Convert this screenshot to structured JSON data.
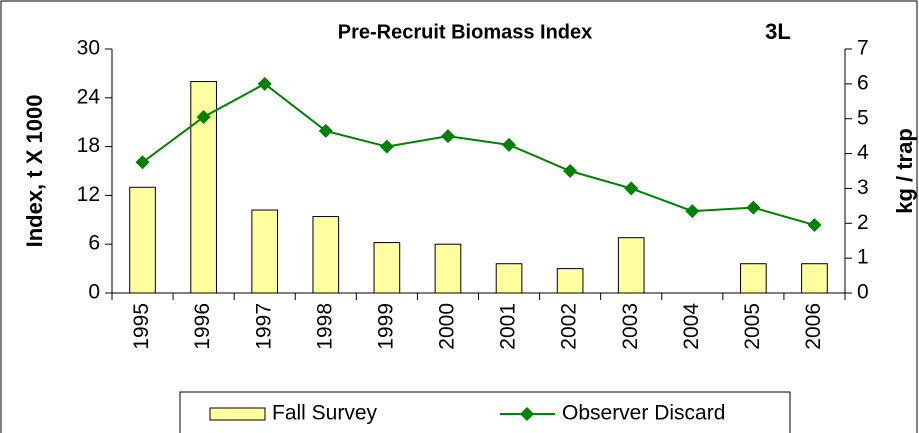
{
  "chart_data": {
    "type": "bar-line",
    "title": "Pre-Recruit Biomass Index",
    "annotation": "3L",
    "y_label": "Index, t X 1000",
    "y2_label": "kg / trap",
    "categories": [
      "1995",
      "1996",
      "1997",
      "1998",
      "1999",
      "2000",
      "2001",
      "2002",
      "2003",
      "2004",
      "2005",
      "2006"
    ],
    "series": [
      {
        "name": "Fall Survey",
        "type": "bar",
        "color": "#ffffa0",
        "values": [
          13,
          26,
          10.2,
          9.4,
          6.2,
          6,
          3.6,
          3,
          6.8,
          null,
          3.6,
          3.6
        ]
      },
      {
        "name": "Observer Discard",
        "type": "line",
        "axis": "y2",
        "color": "#008000",
        "values": [
          3.75,
          5.05,
          6.0,
          4.65,
          4.2,
          4.5,
          4.25,
          3.5,
          3.0,
          2.35,
          2.45,
          1.95
        ]
      }
    ],
    "ylim": [
      0,
      30
    ],
    "yticks": [
      0,
      6,
      12,
      18,
      24,
      30
    ],
    "y2lim": [
      0,
      7
    ],
    "y2ticks": [
      0,
      1,
      2,
      3,
      4,
      5,
      6,
      7
    ],
    "legend": "bottom"
  }
}
